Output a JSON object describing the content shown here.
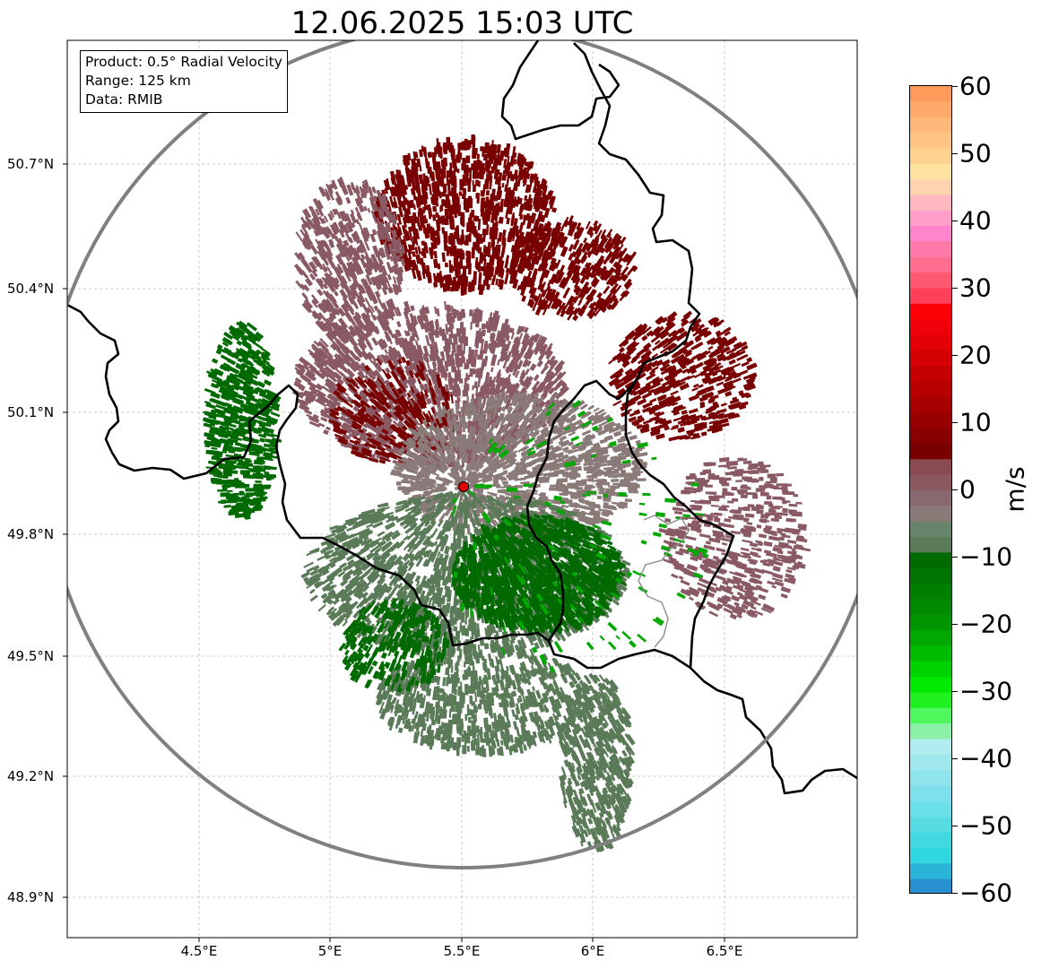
{
  "title": "12.06.2025 15:03 UTC",
  "info": {
    "product": "Product: 0.5° Radial Velocity",
    "range": "Range: 125 km",
    "data": "Data: RMIB"
  },
  "axes": {
    "lat_labels": [
      "50.7°N",
      "50.4°N",
      "50.1°N",
      "49.8°N",
      "49.5°N",
      "49.2°N",
      "48.9°N"
    ],
    "lon_labels": [
      "4.5°E",
      "5°E",
      "5.5°E",
      "6°E",
      "6.5°E"
    ]
  },
  "colorbar": {
    "label": "m/s",
    "tick_labels": [
      "60",
      "50",
      "40",
      "30",
      "20",
      "10",
      "0",
      "−10",
      "−20",
      "−30",
      "−40",
      "−50",
      "−60"
    ],
    "colors_top_to_bottom": [
      "#ff9a5a",
      "#ffa96a",
      "#ffb87a",
      "#ffc585",
      "#ffd28f",
      "#ffe1a0",
      "#ffd2b0",
      "#ffb8c0",
      "#ff9ec8",
      "#ff84cc",
      "#ff7aa8",
      "#ff6e8e",
      "#ff5870",
      "#ff4058",
      "#ff0008",
      "#f00008",
      "#e20006",
      "#d40004",
      "#c40002",
      "#b80000",
      "#a80000",
      "#980000",
      "#880000",
      "#780000",
      "#8a4a52",
      "#8c5860",
      "#8a6870",
      "#8a7a78",
      "#68846a",
      "#5a7a58",
      "#006a00",
      "#007400",
      "#007e00",
      "#008a00",
      "#009600",
      "#00a800",
      "#00bc00",
      "#00d400",
      "#00ea00",
      "#20f020",
      "#50f860",
      "#8cf0a8",
      "#b0ecf0",
      "#a0e8ee",
      "#90e4ec",
      "#7ee0ea",
      "#6ce0e8",
      "#58dce4",
      "#42d8e2",
      "#30d6e0",
      "#2ab4d8",
      "#2690d0"
    ]
  },
  "radar_site": {
    "color": "#e00000"
  },
  "colors": {
    "outbound_strong": "#780000",
    "outbound_weak": "#8a5a64",
    "near_zero_pos": "#8a7a78",
    "near_zero_neg": "#5a7a58",
    "inbound": "#006a00",
    "inbound_strong": "#00a800",
    "range_ring": "#808080",
    "border": "#000000"
  }
}
